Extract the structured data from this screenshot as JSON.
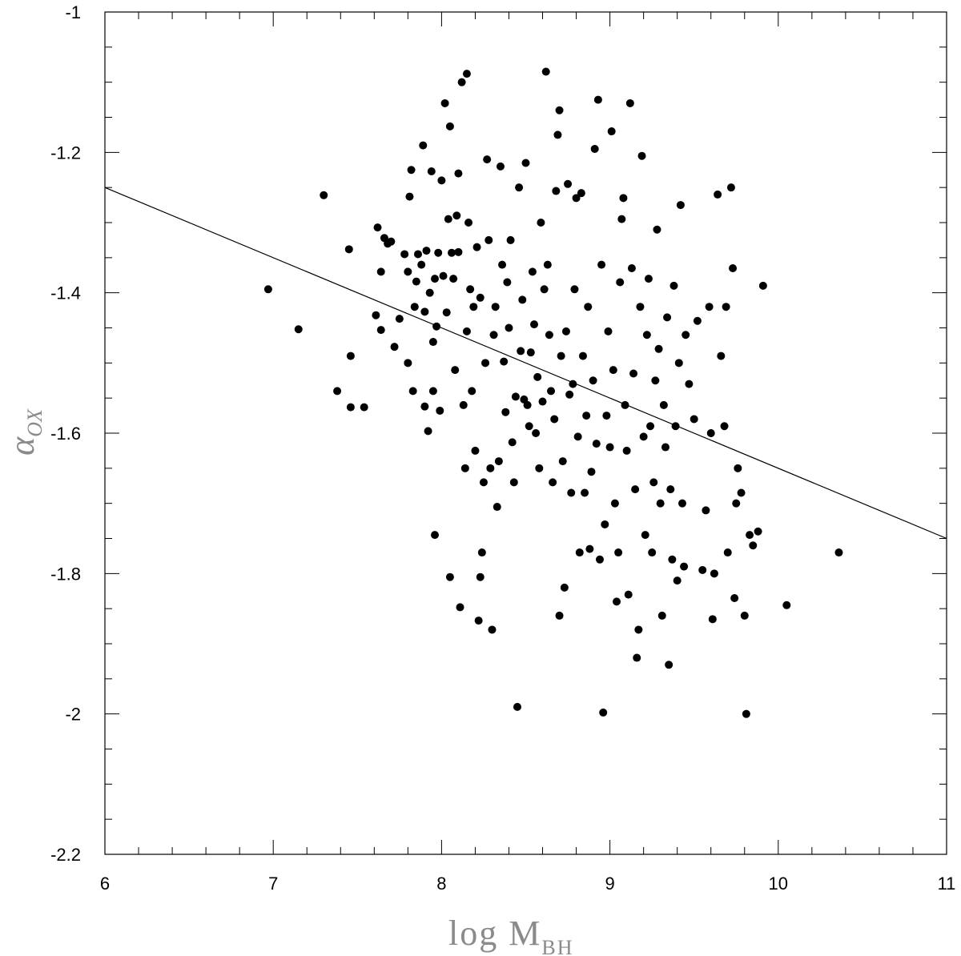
{
  "chart_data": {
    "type": "scatter",
    "title": "",
    "xlabel": {
      "main": "log  M",
      "sub": "BH"
    },
    "ylabel": {
      "main": "α",
      "sub": "OX"
    },
    "xlim": [
      6,
      11
    ],
    "ylim": [
      -2.2,
      -1
    ],
    "x_ticks": [
      "6",
      "7",
      "8",
      "9",
      "10",
      "11"
    ],
    "y_ticks": [
      "-1",
      "-1.2",
      "-1.4",
      "-1.6",
      "-1.8",
      "-2",
      "-2.2"
    ],
    "grid": false,
    "legend": "none",
    "marker_color": "#000000",
    "fit_line": {
      "x": [
        6,
        11
      ],
      "y": [
        -1.25,
        -1.75
      ]
    },
    "points": [
      [
        6.97,
        -1.395
      ],
      [
        7.15,
        -1.452
      ],
      [
        7.3,
        -1.261
      ],
      [
        7.38,
        -1.54
      ],
      [
        7.45,
        -1.338
      ],
      [
        7.46,
        -1.49
      ],
      [
        7.46,
        -1.563
      ],
      [
        7.54,
        -1.563
      ],
      [
        7.61,
        -1.432
      ],
      [
        7.62,
        -1.307
      ],
      [
        7.64,
        -1.453
      ],
      [
        7.64,
        -1.37
      ],
      [
        7.66,
        -1.322
      ],
      [
        7.68,
        -1.33
      ],
      [
        7.7,
        -1.327
      ],
      [
        7.72,
        -1.477
      ],
      [
        7.75,
        -1.437
      ],
      [
        7.78,
        -1.345
      ],
      [
        7.8,
        -1.5
      ],
      [
        7.8,
        -1.37
      ],
      [
        7.81,
        -1.263
      ],
      [
        7.82,
        -1.225
      ],
      [
        7.83,
        -1.54
      ],
      [
        7.84,
        -1.42
      ],
      [
        7.85,
        -1.384
      ],
      [
        7.86,
        -1.345
      ],
      [
        7.88,
        -1.36
      ],
      [
        7.89,
        -1.19
      ],
      [
        7.9,
        -1.427
      ],
      [
        7.9,
        -1.562
      ],
      [
        7.91,
        -1.34
      ],
      [
        7.92,
        -1.597
      ],
      [
        7.93,
        -1.4
      ],
      [
        7.94,
        -1.227
      ],
      [
        7.95,
        -1.54
      ],
      [
        7.95,
        -1.47
      ],
      [
        7.96,
        -1.38
      ],
      [
        7.96,
        -1.745
      ],
      [
        7.97,
        -1.448
      ],
      [
        7.98,
        -1.343
      ],
      [
        7.99,
        -1.568
      ],
      [
        8.0,
        -1.24
      ],
      [
        8.01,
        -1.376
      ],
      [
        8.02,
        -1.13
      ],
      [
        8.03,
        -1.428
      ],
      [
        8.04,
        -1.295
      ],
      [
        8.05,
        -1.163
      ],
      [
        8.05,
        -1.805
      ],
      [
        8.06,
        -1.343
      ],
      [
        8.07,
        -1.38
      ],
      [
        8.08,
        -1.51
      ],
      [
        8.09,
        -1.29
      ],
      [
        8.1,
        -1.342
      ],
      [
        8.1,
        -1.23
      ],
      [
        8.11,
        -1.848
      ],
      [
        8.12,
        -1.1
      ],
      [
        8.13,
        -1.56
      ],
      [
        8.14,
        -1.65
      ],
      [
        8.15,
        -1.088
      ],
      [
        8.15,
        -1.455
      ],
      [
        8.16,
        -1.3
      ],
      [
        8.17,
        -1.395
      ],
      [
        8.18,
        -1.54
      ],
      [
        8.19,
        -1.42
      ],
      [
        8.2,
        -1.625
      ],
      [
        8.21,
        -1.335
      ],
      [
        8.22,
        -1.867
      ],
      [
        8.23,
        -1.407
      ],
      [
        8.23,
        -1.805
      ],
      [
        8.24,
        -1.77
      ],
      [
        8.25,
        -1.67
      ],
      [
        8.26,
        -1.5
      ],
      [
        8.27,
        -1.21
      ],
      [
        8.28,
        -1.325
      ],
      [
        8.29,
        -1.65
      ],
      [
        8.3,
        -1.88
      ],
      [
        8.31,
        -1.46
      ],
      [
        8.32,
        -1.42
      ],
      [
        8.33,
        -1.705
      ],
      [
        8.34,
        -1.64
      ],
      [
        8.35,
        -1.22
      ],
      [
        8.36,
        -1.36
      ],
      [
        8.37,
        -1.498
      ],
      [
        8.38,
        -1.57
      ],
      [
        8.39,
        -1.385
      ],
      [
        8.4,
        -1.45
      ],
      [
        8.41,
        -1.325
      ],
      [
        8.42,
        -1.613
      ],
      [
        8.43,
        -1.67
      ],
      [
        8.44,
        -1.548
      ],
      [
        8.45,
        -1.99
      ],
      [
        8.46,
        -1.25
      ],
      [
        8.47,
        -1.483
      ],
      [
        8.48,
        -1.41
      ],
      [
        8.49,
        -1.552
      ],
      [
        8.5,
        -1.215
      ],
      [
        8.51,
        -1.56
      ],
      [
        8.52,
        -1.59
      ],
      [
        8.53,
        -1.485
      ],
      [
        8.54,
        -1.37
      ],
      [
        8.55,
        -1.445
      ],
      [
        8.56,
        -1.6
      ],
      [
        8.57,
        -1.52
      ],
      [
        8.58,
        -1.65
      ],
      [
        8.59,
        -1.3
      ],
      [
        8.6,
        -1.555
      ],
      [
        8.61,
        -1.395
      ],
      [
        8.62,
        -1.085
      ],
      [
        8.63,
        -1.36
      ],
      [
        8.64,
        -1.46
      ],
      [
        8.65,
        -1.54
      ],
      [
        8.66,
        -1.67
      ],
      [
        8.67,
        -1.58
      ],
      [
        8.68,
        -1.255
      ],
      [
        8.69,
        -1.175
      ],
      [
        8.7,
        -1.14
      ],
      [
        8.7,
        -1.86
      ],
      [
        8.71,
        -1.49
      ],
      [
        8.72,
        -1.64
      ],
      [
        8.73,
        -1.82
      ],
      [
        8.74,
        -1.455
      ],
      [
        8.75,
        -1.245
      ],
      [
        8.76,
        -1.545
      ],
      [
        8.77,
        -1.685
      ],
      [
        8.78,
        -1.53
      ],
      [
        8.79,
        -1.395
      ],
      [
        8.8,
        -1.265
      ],
      [
        8.81,
        -1.605
      ],
      [
        8.82,
        -1.77
      ],
      [
        8.83,
        -1.258
      ],
      [
        8.84,
        -1.49
      ],
      [
        8.85,
        -1.685
      ],
      [
        8.86,
        -1.575
      ],
      [
        8.87,
        -1.42
      ],
      [
        8.88,
        -1.765
      ],
      [
        8.89,
        -1.655
      ],
      [
        8.9,
        -1.525
      ],
      [
        8.91,
        -1.195
      ],
      [
        8.92,
        -1.615
      ],
      [
        8.93,
        -1.125
      ],
      [
        8.94,
        -1.78
      ],
      [
        8.95,
        -1.36
      ],
      [
        8.96,
        -1.998
      ],
      [
        8.97,
        -1.73
      ],
      [
        8.98,
        -1.575
      ],
      [
        8.99,
        -1.455
      ],
      [
        9.0,
        -1.62
      ],
      [
        9.01,
        -1.17
      ],
      [
        9.02,
        -1.51
      ],
      [
        9.03,
        -1.7
      ],
      [
        9.04,
        -1.84
      ],
      [
        9.05,
        -1.77
      ],
      [
        9.06,
        -1.385
      ],
      [
        9.07,
        -1.295
      ],
      [
        9.08,
        -1.265
      ],
      [
        9.09,
        -1.56
      ],
      [
        9.1,
        -1.625
      ],
      [
        9.11,
        -1.83
      ],
      [
        9.12,
        -1.13
      ],
      [
        9.13,
        -1.365
      ],
      [
        9.14,
        -1.515
      ],
      [
        9.15,
        -1.68
      ],
      [
        9.16,
        -1.92
      ],
      [
        9.17,
        -1.88
      ],
      [
        9.18,
        -1.42
      ],
      [
        9.19,
        -1.205
      ],
      [
        9.2,
        -1.605
      ],
      [
        9.21,
        -1.745
      ],
      [
        9.22,
        -1.46
      ],
      [
        9.23,
        -1.38
      ],
      [
        9.24,
        -1.59
      ],
      [
        9.25,
        -1.77
      ],
      [
        9.26,
        -1.67
      ],
      [
        9.27,
        -1.525
      ],
      [
        9.28,
        -1.31
      ],
      [
        9.29,
        -1.48
      ],
      [
        9.3,
        -1.7
      ],
      [
        9.31,
        -1.86
      ],
      [
        9.32,
        -1.56
      ],
      [
        9.33,
        -1.62
      ],
      [
        9.34,
        -1.435
      ],
      [
        9.35,
        -1.93
      ],
      [
        9.36,
        -1.68
      ],
      [
        9.37,
        -1.78
      ],
      [
        9.38,
        -1.39
      ],
      [
        9.39,
        -1.59
      ],
      [
        9.4,
        -1.81
      ],
      [
        9.41,
        -1.5
      ],
      [
        9.42,
        -1.275
      ],
      [
        9.43,
        -1.7
      ],
      [
        9.44,
        -1.79
      ],
      [
        9.45,
        -1.46
      ],
      [
        9.47,
        -1.53
      ],
      [
        9.5,
        -1.58
      ],
      [
        9.52,
        -1.44
      ],
      [
        9.55,
        -1.795
      ],
      [
        9.57,
        -1.71
      ],
      [
        9.59,
        -1.42
      ],
      [
        9.6,
        -1.6
      ],
      [
        9.61,
        -1.865
      ],
      [
        9.62,
        -1.8
      ],
      [
        9.64,
        -1.26
      ],
      [
        9.66,
        -1.49
      ],
      [
        9.68,
        -1.59
      ],
      [
        9.69,
        -1.42
      ],
      [
        9.7,
        -1.77
      ],
      [
        9.72,
        -1.25
      ],
      [
        9.73,
        -1.365
      ],
      [
        9.74,
        -1.835
      ],
      [
        9.75,
        -1.7
      ],
      [
        9.76,
        -1.65
      ],
      [
        9.78,
        -1.685
      ],
      [
        9.8,
        -1.86
      ],
      [
        9.81,
        -2.0
      ],
      [
        9.83,
        -1.745
      ],
      [
        9.85,
        -1.76
      ],
      [
        9.88,
        -1.74
      ],
      [
        9.91,
        -1.39
      ],
      [
        10.05,
        -1.845
      ],
      [
        10.36,
        -1.77
      ]
    ]
  }
}
